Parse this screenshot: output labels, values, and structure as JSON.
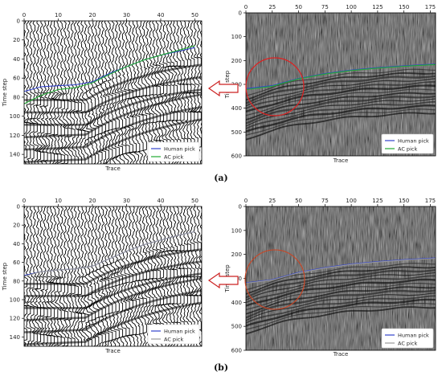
{
  "chart_data": [
    {
      "id": "a-left",
      "type": "line",
      "background": "wiggle",
      "xlabel": "Trace",
      "ylabel": "Time step",
      "xlim": [
        0,
        52
      ],
      "ylim": [
        150,
        0
      ],
      "xticks": [
        0,
        10,
        20,
        30,
        40,
        50
      ],
      "yticks": [
        0,
        20,
        40,
        60,
        80,
        100,
        120,
        140
      ],
      "legend": "bottom-right",
      "series": [
        {
          "name": "Human pick",
          "color": "#3344cc",
          "x": [
            0,
            5,
            10,
            15,
            20,
            25,
            30,
            35,
            40,
            45,
            50
          ],
          "y": [
            74,
            69,
            68,
            67,
            64,
            55,
            48,
            41,
            36,
            32,
            28
          ]
        },
        {
          "name": "AC pick",
          "color": "#22aa33",
          "x": [
            0,
            5,
            10,
            15,
            20,
            25,
            30,
            35,
            40,
            45,
            50
          ],
          "y": [
            87,
            78,
            72,
            70,
            65,
            56,
            48,
            41,
            36,
            31,
            26
          ]
        }
      ]
    },
    {
      "id": "a-right",
      "type": "line",
      "background": "seismic",
      "xlabel": "Trace",
      "ylabel": "Time step",
      "xlim": [
        0,
        180
      ],
      "ylim": [
        600,
        0
      ],
      "xticks": [
        0,
        25,
        50,
        75,
        100,
        125,
        150,
        175
      ],
      "yticks": [
        0,
        100,
        200,
        300,
        400,
        500,
        600
      ],
      "legend": "bottom-right",
      "series": [
        {
          "name": "Human pick",
          "color": "#3344cc",
          "x": [
            0,
            25,
            50,
            75,
            100,
            125,
            150,
            175,
            180
          ],
          "y": [
            318,
            305,
            275,
            255,
            240,
            230,
            222,
            216,
            215
          ]
        },
        {
          "name": "AC pick",
          "color": "#22aa33",
          "x": [
            0,
            25,
            50,
            75,
            100,
            125,
            150,
            175,
            180
          ],
          "y": [
            322,
            308,
            277,
            257,
            242,
            232,
            224,
            218,
            217
          ]
        }
      ]
    },
    {
      "id": "b-left",
      "type": "line",
      "background": "wiggle",
      "xlabel": "Trace",
      "ylabel": "Time step",
      "xlim": [
        0,
        52
      ],
      "ylim": [
        150,
        0
      ],
      "xticks": [
        0,
        10,
        20,
        30,
        40,
        50
      ],
      "yticks": [
        0,
        20,
        40,
        60,
        80,
        100,
        120,
        140
      ],
      "legend": "bottom-right",
      "series": [
        {
          "name": "Human pick",
          "color": "#3344cc",
          "x": [
            0,
            5,
            10,
            15,
            20,
            25,
            30,
            35,
            40,
            45,
            50
          ],
          "y": [
            74,
            70,
            68,
            67,
            64,
            56,
            48,
            41,
            36,
            31,
            27
          ]
        },
        {
          "name": "AC pick",
          "color": "#999999",
          "x": [
            0,
            5,
            10,
            15,
            20,
            25,
            30,
            35,
            40,
            45,
            50
          ],
          "y": [
            75,
            70,
            68,
            67,
            64,
            56,
            48,
            41,
            36,
            31,
            27
          ]
        }
      ]
    },
    {
      "id": "b-right",
      "type": "line",
      "background": "seismic",
      "xlabel": "Trace",
      "ylabel": "Time step",
      "xlim": [
        0,
        180
      ],
      "ylim": [
        600,
        0
      ],
      "xticks": [
        0,
        25,
        50,
        75,
        100,
        125,
        150,
        175
      ],
      "yticks": [
        0,
        100,
        200,
        300,
        400,
        500,
        600
      ],
      "legend": "bottom-right",
      "series": [
        {
          "name": "Human pick",
          "color": "#3344cc",
          "x": [
            0,
            25,
            50,
            75,
            100,
            125,
            150,
            175,
            180
          ],
          "y": [
            318,
            305,
            275,
            255,
            240,
            230,
            222,
            216,
            215
          ]
        },
        {
          "name": "AC pick",
          "color": "#999999",
          "x": [
            0,
            25,
            50,
            75,
            100,
            125,
            150,
            175,
            180
          ],
          "y": [
            320,
            307,
            277,
            257,
            242,
            232,
            224,
            218,
            217
          ]
        }
      ]
    }
  ],
  "labels": {
    "a": "(a)",
    "b": "(b)"
  },
  "colors": {
    "arrow": "#cc2222",
    "circle_a": "#dd2222",
    "circle_b": "#cc4422"
  }
}
